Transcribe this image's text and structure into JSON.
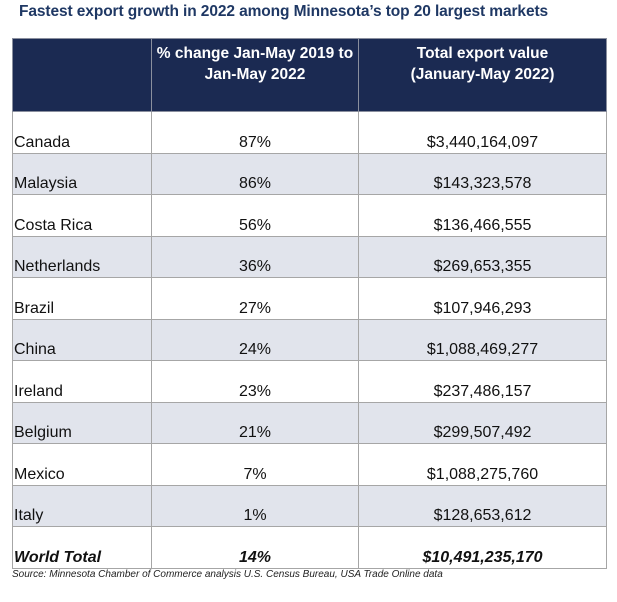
{
  "chart_data": {
    "type": "table",
    "title": "Fastest export growth in 2022 among Minnesota’s top 20 largest markets",
    "columns": [
      "",
      "% change Jan-May 2019 to Jan-May 2022",
      "Total export value (January-May 2022)"
    ],
    "header": {
      "col1": "",
      "col2_line1": "% change Jan-May 2019 to",
      "col2_line2": "Jan-May 2022",
      "col3_line1": "Total export value",
      "col3_line2": "(January-May 2022)"
    },
    "rows": [
      {
        "country": "Canada",
        "pct_change": "87%",
        "export_value": "$3,440,164,097"
      },
      {
        "country": "Malaysia",
        "pct_change": "86%",
        "export_value": "$143,323,578"
      },
      {
        "country": "Costa Rica",
        "pct_change": "56%",
        "export_value": "$136,466,555"
      },
      {
        "country": "Netherlands",
        "pct_change": "36%",
        "export_value": "$269,653,355"
      },
      {
        "country": "Brazil",
        "pct_change": "27%",
        "export_value": "$107,946,293"
      },
      {
        "country": "China",
        "pct_change": "24%",
        "export_value": "$1,088,469,277"
      },
      {
        "country": "Ireland",
        "pct_change": "23%",
        "export_value": "$237,486,157"
      },
      {
        "country": "Belgium",
        "pct_change": "21%",
        "export_value": "$299,507,492"
      },
      {
        "country": "Mexico",
        "pct_change": "7%",
        "export_value": "$1,088,275,760"
      },
      {
        "country": "Italy",
        "pct_change": "1%",
        "export_value": "$128,653,612"
      }
    ],
    "total": {
      "country": "World Total",
      "pct_change": "14%",
      "export_value": "$10,491,235,170"
    },
    "source": "Source: Minnesota Chamber of Commerce analysis U.S. Census Bureau, USA Trade Online data"
  },
  "colors": {
    "title": "#1f3864",
    "header_bg": "#1b2a52",
    "header_text": "#ffffff",
    "row_shade": "#e1e4ec",
    "border": "#a6a6a6"
  }
}
